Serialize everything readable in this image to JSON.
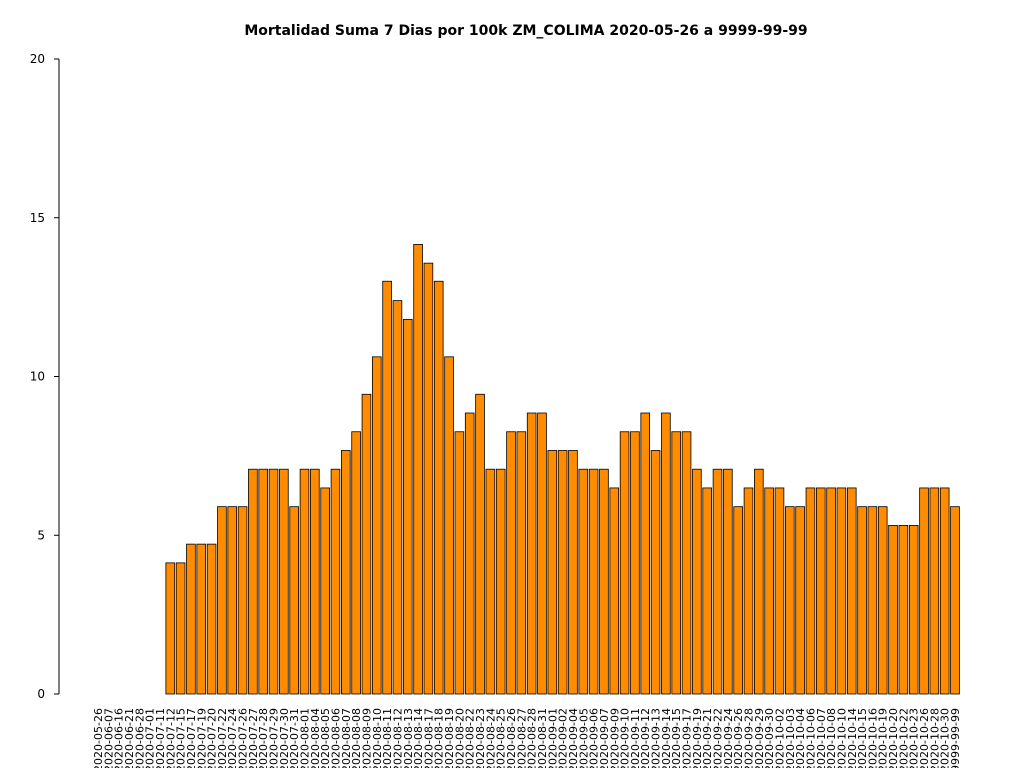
{
  "chart_data": {
    "type": "bar",
    "title": "Mortalidad Suma 7 Dias por 100k ZM_COLIMA 2020-05-26 a 9999-99-99",
    "xlabel": "",
    "ylabel": "",
    "ylim": [
      0,
      20
    ],
    "yticks": [
      0,
      5,
      10,
      15,
      20
    ],
    "grid": false,
    "bar_color": "#ff8c00",
    "edge_color": "#000000",
    "categories": [
      "2020-05-26",
      "2020-06-07",
      "2020-06-16",
      "2020-06-21",
      "2020-06-28",
      "2020-07-01",
      "2020-07-11",
      "2020-07-12",
      "2020-07-15",
      "2020-07-17",
      "2020-07-19",
      "2020-07-20",
      "2020-07-22",
      "2020-07-24",
      "2020-07-26",
      "2020-07-27",
      "2020-07-28",
      "2020-07-29",
      "2020-07-30",
      "2020-07-31",
      "2020-08-01",
      "2020-08-04",
      "2020-08-05",
      "2020-08-06",
      "2020-08-07",
      "2020-08-08",
      "2020-08-09",
      "2020-08-10",
      "2020-08-11",
      "2020-08-12",
      "2020-08-13",
      "2020-08-14",
      "2020-08-17",
      "2020-08-18",
      "2020-08-19",
      "2020-08-20",
      "2020-08-22",
      "2020-08-23",
      "2020-08-24",
      "2020-08-25",
      "2020-08-26",
      "2020-08-27",
      "2020-08-28",
      "2020-08-31",
      "2020-09-01",
      "2020-09-02",
      "2020-09-04",
      "2020-09-05",
      "2020-09-06",
      "2020-09-07",
      "2020-09-09",
      "2020-09-10",
      "2020-09-11",
      "2020-09-12",
      "2020-09-13",
      "2020-09-14",
      "2020-09-15",
      "2020-09-17",
      "2020-09-19",
      "2020-09-21",
      "2020-09-22",
      "2020-09-24",
      "2020-09-26",
      "2020-09-28",
      "2020-09-29",
      "2020-09-30",
      "2020-10-02",
      "2020-10-03",
      "2020-10-04",
      "2020-10-06",
      "2020-10-07",
      "2020-10-08",
      "2020-10-10",
      "2020-10-14",
      "2020-10-15",
      "2020-10-16",
      "2020-10-19",
      "2020-10-20",
      "2020-10-22",
      "2020-10-23",
      "2020-10-26",
      "2020-10-28",
      "2020-10-30",
      "9999-99-99"
    ],
    "values": [
      0,
      0,
      0,
      0,
      0,
      0,
      0,
      4.13,
      4.13,
      4.72,
      4.72,
      4.72,
      5.9,
      5.9,
      5.9,
      7.08,
      7.08,
      7.08,
      7.08,
      5.9,
      7.08,
      7.08,
      6.49,
      7.08,
      7.67,
      8.26,
      9.44,
      10.62,
      13.0,
      12.39,
      11.8,
      14.16,
      13.57,
      13.0,
      10.62,
      8.26,
      8.85,
      9.44,
      7.08,
      7.08,
      8.26,
      8.26,
      8.85,
      8.85,
      7.67,
      7.67,
      7.67,
      7.08,
      7.08,
      7.08,
      6.49,
      8.26,
      8.26,
      8.85,
      7.67,
      8.85,
      8.26,
      8.26,
      7.08,
      6.49,
      7.08,
      7.08,
      5.9,
      6.49,
      7.08,
      6.49,
      6.49,
      5.9,
      5.9,
      6.49,
      6.49,
      6.49,
      6.49,
      6.49,
      5.9,
      5.9,
      5.9,
      5.31,
      5.31,
      5.31,
      6.49,
      6.49,
      6.49,
      5.9
    ]
  }
}
